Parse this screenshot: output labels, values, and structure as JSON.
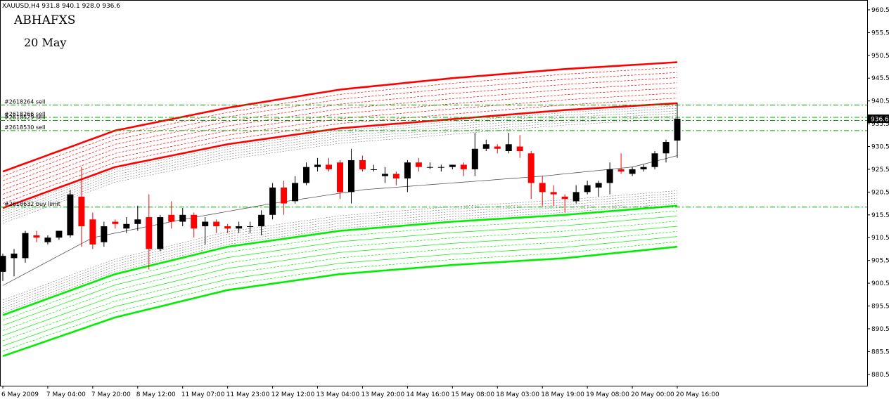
{
  "window": {
    "symbol_header": "XAUUSD,H4  931.8 940.1 928.0 936.6"
  },
  "overlay": {
    "title": "ABHAFXS",
    "date": "20 May"
  },
  "colors": {
    "bull": "#000000",
    "bear": "#ff0000",
    "upper_band": "#ff0000",
    "lower_band": "#00ee00",
    "order_line": "#00aa00",
    "current_price_bg": "#000000"
  },
  "chart_data": {
    "type": "candlestick",
    "title": "",
    "xlabel": "",
    "ylabel": "",
    "ylim": [
      878.0,
      962.5
    ],
    "grid": false,
    "y_ticks": [
      960.5,
      955.5,
      950.5,
      945.5,
      940.5,
      935.5,
      930.5,
      925.5,
      920.5,
      915.5,
      910.5,
      905.5,
      900.5,
      895.5,
      890.5,
      885.5,
      880.5
    ],
    "x_tick_labels": [
      "6 May 2009",
      "7 May 04:00",
      "7 May 20:00",
      "8 May 12:00",
      "11 May 07:00",
      "11 May 23:00",
      "12 May 12:00",
      "13 May 04:00",
      "13 May 20:00",
      "14 May 16:00",
      "15 May 08:00",
      "18 May 03:00",
      "18 May 19:00",
      "19 May 08:00",
      "20 May 00:00",
      "20 May 16:00"
    ],
    "x_tick_index": [
      0,
      4,
      8,
      12,
      16,
      20,
      24,
      28,
      32,
      36,
      40,
      44,
      48,
      52,
      56,
      60
    ],
    "current_price": "936.6",
    "candles": [
      {
        "o": 903.0,
        "h": 907.0,
        "l": 901.0,
        "c": 906.5
      },
      {
        "o": 906.0,
        "h": 908.0,
        "l": 902.0,
        "c": 907.0
      },
      {
        "o": 906.0,
        "h": 912.0,
        "l": 905.0,
        "c": 911.5
      },
      {
        "o": 911.0,
        "h": 912.0,
        "l": 909.5,
        "c": 910.5
      },
      {
        "o": 909.5,
        "h": 911.0,
        "l": 909.0,
        "c": 910.5
      },
      {
        "o": 910.5,
        "h": 912.0,
        "l": 910.0,
        "c": 912.0
      },
      {
        "o": 911.0,
        "h": 921.0,
        "l": 910.5,
        "c": 920.0
      },
      {
        "o": 919.5,
        "h": 926.0,
        "l": 908.5,
        "c": 913.0
      },
      {
        "o": 914.5,
        "h": 916.0,
        "l": 908.0,
        "c": 909.0
      },
      {
        "o": 909.5,
        "h": 914.0,
        "l": 908.5,
        "c": 913.0
      },
      {
        "o": 914.0,
        "h": 914.5,
        "l": 912.5,
        "c": 913.5
      },
      {
        "o": 912.5,
        "h": 915.0,
        "l": 911.5,
        "c": 913.5
      },
      {
        "o": 913.5,
        "h": 917.5,
        "l": 912.0,
        "c": 914.5
      },
      {
        "o": 915.0,
        "h": 920.0,
        "l": 903.5,
        "c": 908.0
      },
      {
        "o": 908.0,
        "h": 915.5,
        "l": 907.5,
        "c": 915.0
      },
      {
        "o": 915.5,
        "h": 918.5,
        "l": 912.5,
        "c": 914.0
      },
      {
        "o": 914.0,
        "h": 917.0,
        "l": 913.0,
        "c": 915.5
      },
      {
        "o": 915.5,
        "h": 916.0,
        "l": 910.5,
        "c": 912.5
      },
      {
        "o": 913.0,
        "h": 915.0,
        "l": 909.0,
        "c": 914.0
      },
      {
        "o": 914.0,
        "h": 914.5,
        "l": 911.5,
        "c": 913.0
      },
      {
        "o": 913.0,
        "h": 913.5,
        "l": 911.5,
        "c": 912.5
      },
      {
        "o": 912.5,
        "h": 914.0,
        "l": 911.5,
        "c": 913.0
      },
      {
        "o": 913.0,
        "h": 914.0,
        "l": 911.5,
        "c": 913.0
      },
      {
        "o": 913.0,
        "h": 916.5,
        "l": 911.0,
        "c": 915.5
      },
      {
        "o": 915.5,
        "h": 922.5,
        "l": 914.5,
        "c": 921.5
      },
      {
        "o": 921.5,
        "h": 923.0,
        "l": 915.5,
        "c": 918.0
      },
      {
        "o": 918.5,
        "h": 924.0,
        "l": 918.0,
        "c": 922.5
      },
      {
        "o": 922.5,
        "h": 927.0,
        "l": 922.0,
        "c": 926.0
      },
      {
        "o": 926.0,
        "h": 928.0,
        "l": 925.0,
        "c": 926.5
      },
      {
        "o": 926.5,
        "h": 928.0,
        "l": 925.0,
        "c": 925.5
      },
      {
        "o": 927.0,
        "h": 927.5,
        "l": 919.0,
        "c": 920.5
      },
      {
        "o": 920.5,
        "h": 930.0,
        "l": 918.0,
        "c": 927.5
      },
      {
        "o": 927.5,
        "h": 928.5,
        "l": 925.0,
        "c": 925.5
      },
      {
        "o": 925.5,
        "h": 926.5,
        "l": 925.0,
        "c": 925.5
      },
      {
        "o": 924.0,
        "h": 926.0,
        "l": 922.5,
        "c": 924.5
      },
      {
        "o": 924.5,
        "h": 925.0,
        "l": 922.0,
        "c": 923.5
      },
      {
        "o": 923.5,
        "h": 927.5,
        "l": 920.5,
        "c": 927.0
      },
      {
        "o": 927.0,
        "h": 928.0,
        "l": 925.0,
        "c": 926.0
      },
      {
        "o": 926.0,
        "h": 927.0,
        "l": 925.5,
        "c": 926.0
      },
      {
        "o": 926.0,
        "h": 926.5,
        "l": 925.0,
        "c": 926.0
      },
      {
        "o": 926.0,
        "h": 926.5,
        "l": 925.5,
        "c": 926.5
      },
      {
        "o": 926.5,
        "h": 927.0,
        "l": 924.0,
        "c": 925.5
      },
      {
        "o": 925.5,
        "h": 933.5,
        "l": 924.0,
        "c": 930.0
      },
      {
        "o": 930.0,
        "h": 932.0,
        "l": 929.5,
        "c": 931.0
      },
      {
        "o": 930.5,
        "h": 931.0,
        "l": 929.0,
        "c": 930.0
      },
      {
        "o": 929.5,
        "h": 933.5,
        "l": 929.0,
        "c": 931.0
      },
      {
        "o": 930.5,
        "h": 933.0,
        "l": 928.0,
        "c": 929.5
      },
      {
        "o": 929.0,
        "h": 929.5,
        "l": 919.0,
        "c": 922.5
      },
      {
        "o": 922.5,
        "h": 924.0,
        "l": 917.5,
        "c": 920.5
      },
      {
        "o": 920.5,
        "h": 922.0,
        "l": 917.5,
        "c": 920.0
      },
      {
        "o": 919.5,
        "h": 920.0,
        "l": 916.0,
        "c": 919.0
      },
      {
        "o": 918.5,
        "h": 922.0,
        "l": 918.0,
        "c": 920.5
      },
      {
        "o": 920.5,
        "h": 923.0,
        "l": 920.0,
        "c": 922.0
      },
      {
        "o": 921.5,
        "h": 923.0,
        "l": 919.5,
        "c": 922.5
      },
      {
        "o": 922.5,
        "h": 927.0,
        "l": 920.0,
        "c": 925.5
      },
      {
        "o": 925.5,
        "h": 929.0,
        "l": 924.5,
        "c": 925.0
      },
      {
        "o": 924.5,
        "h": 926.0,
        "l": 924.0,
        "c": 925.5
      },
      {
        "o": 925.5,
        "h": 926.5,
        "l": 925.0,
        "c": 926.0
      },
      {
        "o": 926.0,
        "h": 929.5,
        "l": 925.5,
        "c": 929.0
      },
      {
        "o": 929.0,
        "h": 932.0,
        "l": 927.0,
        "c": 931.5
      },
      {
        "o": 931.8,
        "h": 940.1,
        "l": 928.0,
        "c": 936.6
      }
    ],
    "ma_line": [
      [
        0,
        900.0
      ],
      [
        8,
        910.5
      ],
      [
        16,
        914.5
      ],
      [
        24,
        918.0
      ],
      [
        32,
        921.0
      ],
      [
        40,
        922.5
      ],
      [
        48,
        924.0
      ],
      [
        56,
        926.0
      ],
      [
        60,
        928.5
      ]
    ],
    "upper_outer": [
      [
        0,
        925.0
      ],
      [
        10,
        934.0
      ],
      [
        20,
        939.0
      ],
      [
        30,
        943.0
      ],
      [
        40,
        945.5
      ],
      [
        50,
        947.5
      ],
      [
        60,
        949.0
      ]
    ],
    "upper_inner": [
      [
        0,
        917.0
      ],
      [
        10,
        926.0
      ],
      [
        20,
        931.0
      ],
      [
        30,
        934.5
      ],
      [
        40,
        936.5
      ],
      [
        50,
        938.5
      ],
      [
        60,
        940.0
      ]
    ],
    "lower_outer": [
      [
        0,
        884.5
      ],
      [
        10,
        893.0
      ],
      [
        20,
        899.0
      ],
      [
        30,
        902.5
      ],
      [
        40,
        904.5
      ],
      [
        50,
        906.0
      ],
      [
        60,
        908.5
      ]
    ],
    "lower_inner": [
      [
        0,
        893.5
      ],
      [
        10,
        902.5
      ],
      [
        20,
        908.5
      ],
      [
        30,
        912.0
      ],
      [
        40,
        914.0
      ],
      [
        50,
        915.5
      ],
      [
        60,
        917.5
      ]
    ],
    "orders": [
      {
        "label": "#2618264 sell",
        "price": 939.6
      },
      {
        "label": "#2618266 sell",
        "price": 936.9
      },
      {
        "label": "#2618529 sell",
        "price": 936.2
      },
      {
        "label": "#2618530 sell",
        "price": 934.0
      },
      {
        "label": "#2618632 buy limit",
        "price": 917.2
      }
    ]
  }
}
